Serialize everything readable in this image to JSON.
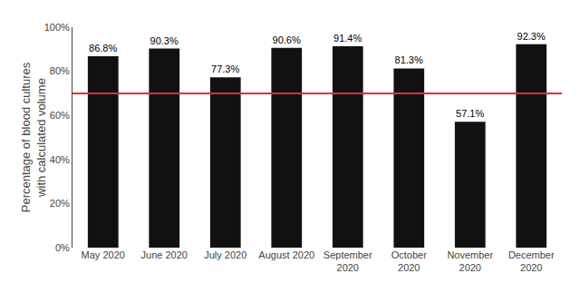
{
  "chart_data": {
    "type": "bar",
    "categories": [
      "May 2020",
      "June 2020",
      "July 2020",
      "August 2020",
      "September\n2020",
      "October\n2020",
      "November\n2020",
      "December\n2020"
    ],
    "values": [
      86.8,
      90.3,
      77.3,
      90.6,
      91.4,
      81.3,
      57.1,
      92.3
    ],
    "value_labels": [
      "86.8%",
      "90.3%",
      "77.3%",
      "90.6%",
      "91.4%",
      "81.3%",
      "57.1%",
      "92.3%"
    ],
    "data_labels": true,
    "color": "#111111",
    "reference_line": {
      "value": 70,
      "color": "#e03030"
    },
    "ylabel": "Percentage of blood cultures\nwith calculated volume",
    "ylim": [
      0,
      100
    ],
    "yticks": [
      {
        "value": 0,
        "label": "0%"
      },
      {
        "value": 20,
        "label": "20%"
      },
      {
        "value": 40,
        "label": "40%"
      },
      {
        "value": 60,
        "label": "60%"
      },
      {
        "value": 80,
        "label": "80%"
      },
      {
        "value": 100,
        "label": "100%"
      }
    ],
    "grid": false
  }
}
